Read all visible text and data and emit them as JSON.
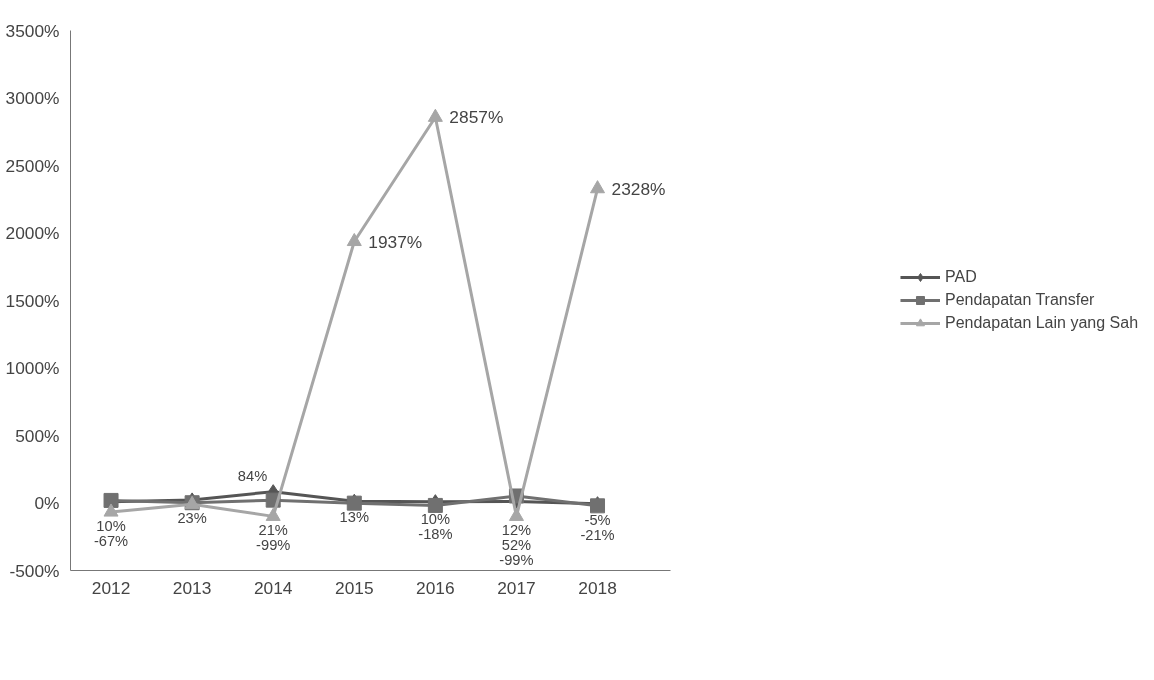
{
  "chart_data": {
    "type": "line",
    "categories": [
      "2012",
      "2013",
      "2014",
      "2015",
      "2016",
      "2017",
      "2018"
    ],
    "ylim": [
      -500,
      3500
    ],
    "yticks": [
      {
        "value": -500,
        "label": "-500%"
      },
      {
        "value": 0,
        "label": "0%"
      },
      {
        "value": 500,
        "label": "500%"
      },
      {
        "value": 1000,
        "label": "1000%"
      },
      {
        "value": 1500,
        "label": "1500%"
      },
      {
        "value": 2000,
        "label": "2000%"
      },
      {
        "value": 2500,
        "label": "2500%"
      },
      {
        "value": 3000,
        "label": "3000%"
      },
      {
        "value": 3500,
        "label": "3500%"
      }
    ],
    "series": [
      {
        "name": "PAD",
        "color": "#555555",
        "marker": "diamond",
        "values": [
          10,
          23,
          84,
          13,
          10,
          12,
          -5
        ],
        "value_labels": [
          "10%",
          "23%",
          "84%",
          "13%",
          "10%",
          "12%",
          "-5%"
        ]
      },
      {
        "name": "Pendapatan Transfer",
        "color": "#707070",
        "marker": "square",
        "values": [
          19,
          2,
          21,
          -1,
          -18,
          52,
          -21
        ],
        "value_labels": [
          null,
          null,
          "21%",
          null,
          "-18%",
          "52%",
          "-21%"
        ]
      },
      {
        "name": "Pendapatan Lain yang Sah",
        "color": "#a6a6a6",
        "marker": "triangle",
        "values": [
          -67,
          -10,
          -99,
          1937,
          2857,
          -99,
          2328
        ],
        "value_labels": [
          "-67%",
          null,
          "-99%",
          "1937%",
          "2857%",
          "-99%",
          "2328%"
        ]
      }
    ],
    "grid": false,
    "legend": "right"
  }
}
